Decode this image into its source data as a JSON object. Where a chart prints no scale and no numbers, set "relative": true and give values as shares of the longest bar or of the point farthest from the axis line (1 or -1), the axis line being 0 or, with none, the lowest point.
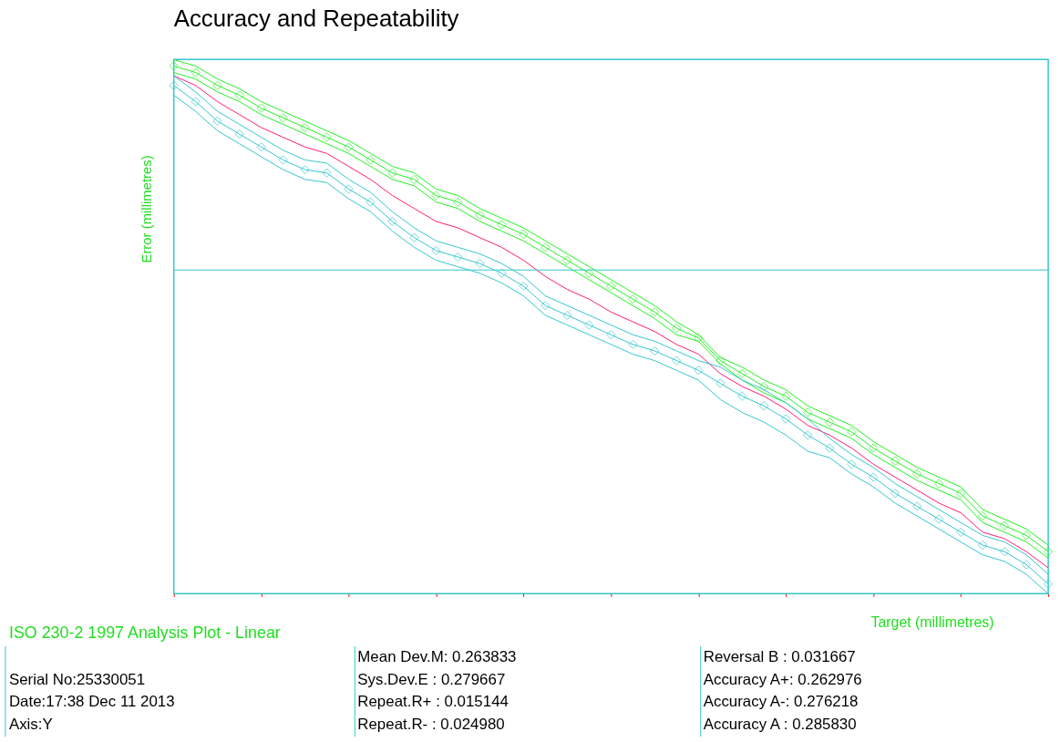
{
  "chart_data": {
    "type": "line",
    "title": "Accuracy and Repeatability",
    "ylabel": "Error (millimetres)",
    "xlabel": "Target (millimetres)",
    "relative": true,
    "grid": false,
    "tick_labels": false,
    "line_style": "solid",
    "categories": [
      null,
      null,
      null,
      null,
      null,
      null,
      null,
      null,
      null,
      null,
      null,
      null,
      null,
      null,
      null,
      null,
      null,
      null,
      null,
      null,
      null,
      null,
      null,
      null,
      null,
      null,
      null,
      null,
      null,
      null,
      null,
      null,
      null,
      null,
      null,
      null,
      null,
      null,
      null,
      null,
      null
    ],
    "series": [
      {
        "color": "#22ee22",
        "marker": "none",
        "values": [
          0.65,
          0.63,
          0.59,
          0.56,
          0.52,
          0.49,
          0.46,
          0.43,
          0.4,
          0.36,
          0.32,
          0.3,
          0.25,
          0.23,
          0.19,
          0.16,
          0.13,
          0.09,
          0.05,
          0.01,
          -0.03,
          -0.07,
          -0.11,
          -0.16,
          -0.2,
          -0.27,
          -0.3,
          -0.34,
          -0.37,
          -0.42,
          -0.45,
          -0.48,
          -0.53,
          -0.57,
          -0.61,
          -0.64,
          -0.67,
          -0.74,
          -0.77,
          -0.8,
          -0.85
        ]
      },
      {
        "color": "#22ee22",
        "marker": "diamond",
        "values": [
          0.63,
          0.61,
          0.57,
          0.54,
          0.5,
          0.47,
          0.44,
          0.41,
          0.38,
          0.34,
          0.3,
          0.28,
          0.23,
          0.21,
          0.17,
          0.14,
          0.11,
          0.07,
          0.03,
          -0.01,
          -0.05,
          -0.09,
          -0.13,
          -0.18,
          -0.21,
          -0.28,
          -0.32,
          -0.36,
          -0.39,
          -0.44,
          -0.47,
          -0.5,
          -0.55,
          -0.59,
          -0.63,
          -0.66,
          -0.69,
          -0.76,
          -0.79,
          -0.82,
          -0.87
        ]
      },
      {
        "color": "#22ee22",
        "marker": "none",
        "values": [
          0.61,
          0.59,
          0.55,
          0.52,
          0.48,
          0.45,
          0.42,
          0.39,
          0.36,
          0.32,
          0.28,
          0.26,
          0.21,
          0.19,
          0.15,
          0.12,
          0.09,
          0.05,
          0.01,
          -0.03,
          -0.07,
          -0.11,
          -0.15,
          -0.2,
          -0.22,
          -0.29,
          -0.34,
          -0.38,
          -0.41,
          -0.46,
          -0.49,
          -0.52,
          -0.57,
          -0.61,
          -0.65,
          -0.68,
          -0.71,
          -0.78,
          -0.81,
          -0.84,
          -0.89
        ]
      },
      {
        "color": "#ff1a75",
        "marker": "none",
        "values": [
          0.6,
          0.57,
          0.52,
          0.48,
          0.44,
          0.41,
          0.38,
          0.36,
          0.32,
          0.28,
          0.23,
          0.19,
          0.15,
          0.13,
          0.1,
          0.07,
          0.03,
          -0.02,
          -0.06,
          -0.09,
          -0.13,
          -0.16,
          -0.19,
          -0.23,
          -0.26,
          -0.32,
          -0.36,
          -0.39,
          -0.43,
          -0.48,
          -0.51,
          -0.55,
          -0.6,
          -0.64,
          -0.68,
          -0.72,
          -0.75,
          -0.81,
          -0.83,
          -0.87,
          -0.92
        ]
      },
      {
        "color": "#33c6cc",
        "marker": "none",
        "values": [
          0.6,
          0.55,
          0.49,
          0.45,
          0.41,
          0.37,
          0.34,
          0.33,
          0.28,
          0.24,
          0.18,
          0.13,
          0.09,
          0.07,
          0.05,
          0.02,
          -0.02,
          -0.08,
          -0.11,
          -0.14,
          -0.17,
          -0.2,
          -0.22,
          -0.25,
          -0.28,
          -0.3,
          -0.34,
          -0.37,
          -0.41,
          -0.46,
          -0.52,
          -0.57,
          -0.61,
          -0.66,
          -0.7,
          -0.74,
          -0.78,
          -0.82,
          -0.84,
          -0.88,
          -0.94
        ]
      },
      {
        "color": "#33c6cc",
        "marker": "diamond",
        "values": [
          0.57,
          0.52,
          0.46,
          0.42,
          0.38,
          0.34,
          0.31,
          0.3,
          0.25,
          0.21,
          0.15,
          0.1,
          0.06,
          0.04,
          0.02,
          -0.01,
          -0.05,
          -0.11,
          -0.14,
          -0.17,
          -0.2,
          -0.23,
          -0.25,
          -0.28,
          -0.31,
          -0.35,
          -0.39,
          -0.42,
          -0.46,
          -0.51,
          -0.55,
          -0.6,
          -0.64,
          -0.69,
          -0.73,
          -0.77,
          -0.81,
          -0.85,
          -0.87,
          -0.91,
          -0.97
        ]
      },
      {
        "color": "#33c6cc",
        "marker": "none",
        "values": [
          0.54,
          0.49,
          0.43,
          0.39,
          0.35,
          0.31,
          0.28,
          0.27,
          0.22,
          0.18,
          0.12,
          0.07,
          0.03,
          0.01,
          -0.01,
          -0.04,
          -0.08,
          -0.14,
          -0.17,
          -0.2,
          -0.23,
          -0.26,
          -0.28,
          -0.31,
          -0.34,
          -0.4,
          -0.44,
          -0.47,
          -0.51,
          -0.56,
          -0.58,
          -0.63,
          -0.67,
          -0.72,
          -0.76,
          -0.8,
          -0.84,
          -0.88,
          -0.9,
          -0.94,
          -1.0
        ]
      }
    ],
    "ref_lines": [
      {
        "axis": "y",
        "value": 0,
        "color": "#33c6cc"
      }
    ],
    "annotations": [
      "ISO 230-2 1997 Analysis Plot - Linear",
      "Serial No:25330051",
      "Date:17:38 Dec 11 2013",
      "Axis:Y",
      "Mean Dev.M:  0.263833",
      "Sys.Dev.E :  0.279667",
      "Repeat.R+ :  0.015144",
      "Repeat.R- :  0.024980",
      "Reversal B :  0.031667",
      "Accuracy A+:  0.262976",
      "Accuracy A-:  0.276218",
      "Accuracy A :  0.285830"
    ]
  }
}
